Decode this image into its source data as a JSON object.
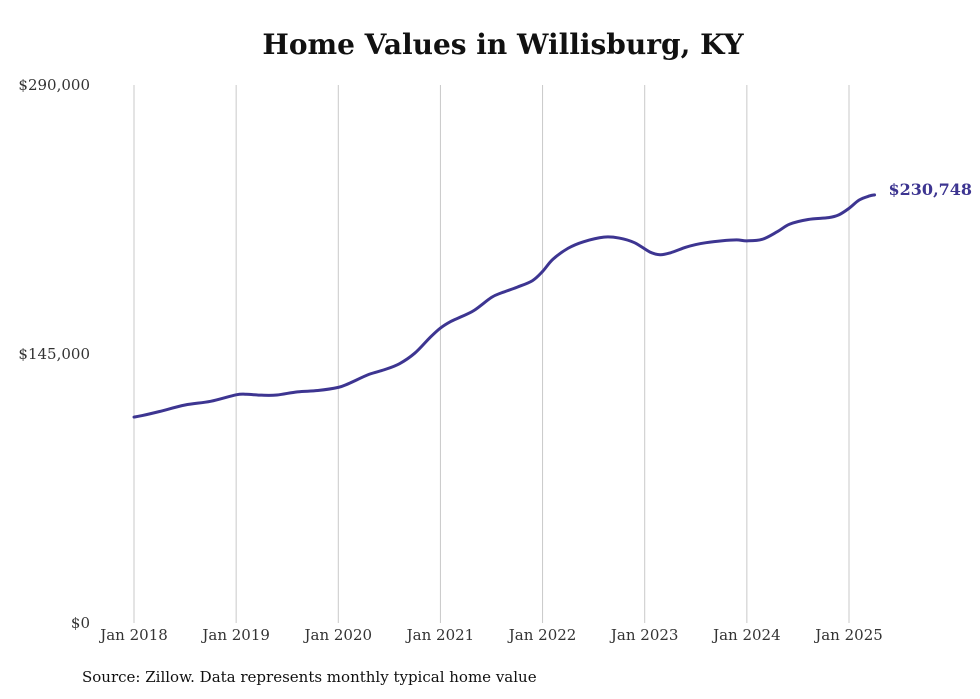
{
  "chart_data": {
    "type": "line",
    "title": "Home Values in Willisburg, KY",
    "xlabel": "",
    "ylabel": "",
    "ylim": [
      0,
      290000
    ],
    "y_ticks": [
      "$290,000",
      "$145,000",
      "$0"
    ],
    "x_ticks": [
      "Jan 2018",
      "Jan 2019",
      "Jan 2020",
      "Jan 2021",
      "Jan 2022",
      "Jan 2023",
      "Jan 2024",
      "Jan 2025"
    ],
    "grid": "vertical",
    "line_color": "#3d3591",
    "end_label": "$230,748",
    "series": [
      {
        "values": [
          [
            2018.0,
            111000
          ],
          [
            2018.08,
            111800
          ],
          [
            2018.25,
            114000
          ],
          [
            2018.5,
            117500
          ],
          [
            2018.75,
            119500
          ],
          [
            2019.0,
            123000
          ],
          [
            2019.1,
            123300
          ],
          [
            2019.25,
            122800
          ],
          [
            2019.4,
            122900
          ],
          [
            2019.6,
            124600
          ],
          [
            2019.8,
            125300
          ],
          [
            2020.0,
            127000
          ],
          [
            2020.1,
            129000
          ],
          [
            2020.3,
            134000
          ],
          [
            2020.45,
            136500
          ],
          [
            2020.6,
            139800
          ],
          [
            2020.75,
            145500
          ],
          [
            2020.9,
            154000
          ],
          [
            2021.0,
            159000
          ],
          [
            2021.1,
            162500
          ],
          [
            2021.2,
            165000
          ],
          [
            2021.33,
            168500
          ],
          [
            2021.5,
            175500
          ],
          [
            2021.6,
            178000
          ],
          [
            2021.75,
            181000
          ],
          [
            2021.9,
            184500
          ],
          [
            2022.0,
            189500
          ],
          [
            2022.1,
            196000
          ],
          [
            2022.25,
            202000
          ],
          [
            2022.4,
            205500
          ],
          [
            2022.6,
            208000
          ],
          [
            2022.75,
            207500
          ],
          [
            2022.9,
            205000
          ],
          [
            2023.05,
            200000
          ],
          [
            2023.15,
            198500
          ],
          [
            2023.25,
            199500
          ],
          [
            2023.4,
            202500
          ],
          [
            2023.5,
            204000
          ],
          [
            2023.6,
            205000
          ],
          [
            2023.75,
            206000
          ],
          [
            2023.9,
            206500
          ],
          [
            2024.0,
            206000
          ],
          [
            2024.15,
            206800
          ],
          [
            2024.3,
            211000
          ],
          [
            2024.42,
            215000
          ],
          [
            2024.6,
            217500
          ],
          [
            2024.8,
            218500
          ],
          [
            2024.9,
            220000
          ],
          [
            2025.0,
            223500
          ],
          [
            2025.1,
            228000
          ],
          [
            2025.2,
            230200
          ],
          [
            2025.25,
            230748
          ]
        ]
      }
    ]
  },
  "footer": {
    "source": "Source: Zillow. Data represents monthly typical home value"
  }
}
